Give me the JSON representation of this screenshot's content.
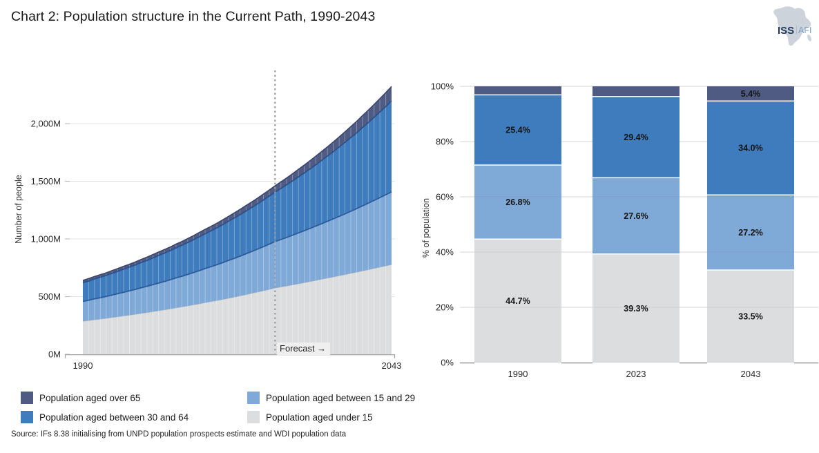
{
  "page": {
    "title": "Chart 2: Population structure in the Current Path, 1990-2043",
    "source": "Source: IFs 8.38 initialising from UNPD population prospects estimate and WDI population data"
  },
  "logo": {
    "org": "ISS",
    "suffix": "AFI"
  },
  "legend": {
    "items": [
      {
        "label": "Population aged over 65",
        "color": "#4F5B83"
      },
      {
        "label": "Population aged between 30 and 64",
        "color": "#3E7CBE"
      },
      {
        "label": "Population aged between 15 and 29",
        "color": "#7FA9D7"
      },
      {
        "label": "Population aged under 15",
        "color": "#DCDDDE"
      }
    ]
  },
  "chart_data": [
    {
      "type": "area",
      "stacked": true,
      "ylabel": "Number of people",
      "unit": "millions of people",
      "x_range": [
        1990,
        2043
      ],
      "x_tick_labels": [
        "1990",
        "2043"
      ],
      "y_ticks": [
        "0M",
        "500M",
        "1,000M",
        "1,500M",
        "2,000M"
      ],
      "y_tick_values": [
        0,
        500,
        1000,
        1500,
        2000
      ],
      "ylim": [
        0,
        2400
      ],
      "forecast": {
        "year": 2023,
        "label": "Forecast →"
      },
      "series": [
        {
          "name": "Population aged under 15",
          "color": "#DCDDDE",
          "values": [
            286,
            292,
            299,
            305,
            311,
            318,
            325,
            332,
            339,
            346,
            354,
            361,
            369,
            377,
            385,
            393,
            402,
            410,
            419,
            428,
            437,
            447,
            456,
            465,
            475,
            485,
            496,
            506,
            517,
            528,
            539,
            550,
            562,
            574,
            583,
            592,
            601,
            611,
            620,
            630,
            640,
            650,
            660,
            670,
            680,
            690,
            701,
            711,
            722,
            733,
            744,
            755,
            766,
            777
          ]
        },
        {
          "name": "Population aged between 15 and 29",
          "color": "#7FA9D7",
          "values": [
            172,
            176,
            181,
            185,
            190,
            195,
            200,
            206,
            211,
            216,
            222,
            228,
            234,
            240,
            246,
            253,
            260,
            266,
            273,
            280,
            288,
            296,
            303,
            311,
            319,
            328,
            336,
            345,
            354,
            363,
            373,
            383,
            393,
            403,
            412,
            421,
            431,
            441,
            451,
            461,
            472,
            482,
            493,
            504,
            516,
            527,
            539,
            551,
            564,
            577,
            590,
            603,
            617,
            631
          ]
        },
        {
          "name": "Population aged between 30 and 64",
          "color": "#3E7CBE",
          "values": [
            163,
            167,
            173,
            178,
            183,
            189,
            194,
            200,
            206,
            212,
            219,
            225,
            232,
            239,
            246,
            253,
            261,
            269,
            277,
            285,
            294,
            302,
            311,
            320,
            330,
            340,
            350,
            360,
            371,
            382,
            393,
            405,
            417,
            429,
            443,
            457,
            471,
            486,
            501,
            516,
            532,
            549,
            566,
            583,
            601,
            620,
            639,
            658,
            679,
            699,
            721,
            743,
            765,
            789
          ]
        },
        {
          "name": "Population aged over 65",
          "color": "#4F5B83",
          "values": [
            20,
            21,
            21,
            22,
            22,
            23,
            24,
            25,
            25,
            26,
            27,
            28,
            29,
            30,
            31,
            31,
            32,
            33,
            34,
            35,
            37,
            38,
            39,
            40,
            41,
            42,
            44,
            45,
            47,
            48,
            49,
            51,
            52,
            54,
            57,
            59,
            62,
            65,
            68,
            71,
            74,
            77,
            80,
            84,
            87,
            91,
            95,
            99,
            103,
            107,
            111,
            116,
            120,
            125
          ]
        }
      ]
    },
    {
      "type": "bar",
      "stacked": true,
      "percent": true,
      "ylabel": "% of population",
      "categories": [
        "1990",
        "2023",
        "2043"
      ],
      "y_ticks": [
        "0%",
        "20%",
        "40%",
        "60%",
        "80%",
        "100%"
      ],
      "y_tick_values": [
        0,
        20,
        40,
        60,
        80,
        100
      ],
      "ylim": [
        0,
        100
      ],
      "series": [
        {
          "name": "Population aged under 15",
          "color": "#DCDDDE",
          "values": [
            44.7,
            39.3,
            33.5
          ],
          "labels": [
            "44.7%",
            "39.3%",
            "33.5%"
          ]
        },
        {
          "name": "Population aged between 15 and 29",
          "color": "#7FA9D7",
          "values": [
            26.8,
            27.6,
            27.2
          ],
          "labels": [
            "26.8%",
            "27.6%",
            "27.2%"
          ]
        },
        {
          "name": "Population aged between 30 and 64",
          "color": "#3E7CBE",
          "values": [
            25.4,
            29.4,
            34.0
          ],
          "labels": [
            "25.4%",
            "29.4%",
            "34.0%"
          ]
        },
        {
          "name": "Population aged over 65",
          "color": "#4F5B83",
          "values": [
            3.1,
            3.7,
            5.4
          ],
          "labels": [
            null,
            null,
            "5.4%"
          ]
        }
      ]
    }
  ]
}
